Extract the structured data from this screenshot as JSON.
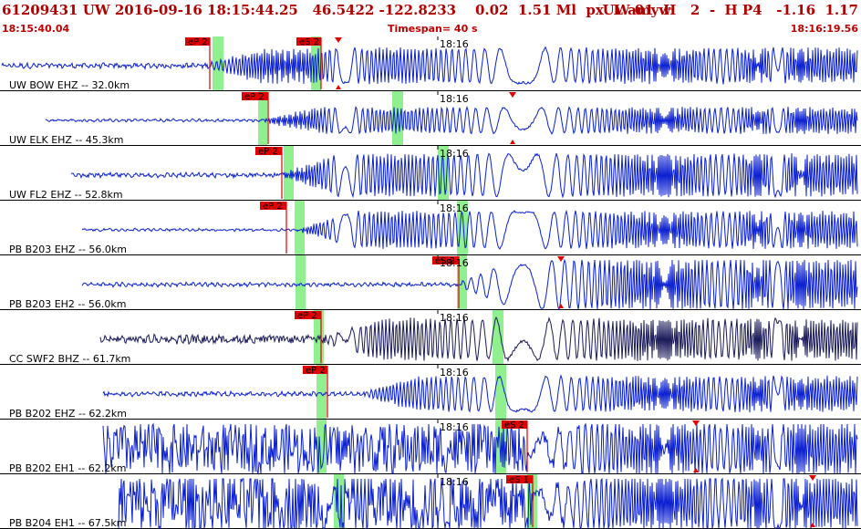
{
  "header": {
    "title": "61209431 UW 2016-09-16 18:15:44.25   46.5422 -122.8233    0.02  1.51 Ml  px  L amyw",
    "values": "UW 01  H   2  -  H P4   -1.16  1.17",
    "start_time": "18:15:40.04",
    "timespan": "Timespan=  40 s",
    "end_time": "18:16:19.56"
  },
  "colors": {
    "trace": "#0a1fd0",
    "trace_alt": "#1a1a5a",
    "pick": "#e00000",
    "window": "#90f090",
    "header_text": "#b00000"
  },
  "time_marker": "18:16",
  "channels": [
    {
      "label": "UW BOW EHZ -- 32.0km",
      "color": "#0a1fd0",
      "picks": [
        "eP 2",
        "eS 2"
      ]
    },
    {
      "label": "UW ELK EHZ -- 45.3km",
      "color": "#0a1fd0",
      "picks": [
        "eP 2"
      ]
    },
    {
      "label": "UW FL2 EHZ -- 52.8km",
      "color": "#0a1fd0",
      "picks": [
        "eP 2"
      ]
    },
    {
      "label": "PB B203 EHZ -- 56.0km",
      "color": "#0a1fd0",
      "picks": [
        "eP 2"
      ]
    },
    {
      "label": "PB B203 EH2 -- 56.0km",
      "color": "#0a1fd0",
      "picks": [
        "eS 2"
      ]
    },
    {
      "label": "CC SWF2 BHZ -- 61.7km",
      "color": "#1a1a5a",
      "picks": [
        "eP 2"
      ]
    },
    {
      "label": "PB B202 EHZ -- 62.2km",
      "color": "#0a1fd0",
      "picks": [
        "eP 2"
      ]
    },
    {
      "label": "PB B202 EH1 -- 62.2km",
      "color": "#0a1fd0",
      "picks": [
        "eS 2"
      ]
    },
    {
      "label": "PB B204 EH1 -- 67.5km",
      "color": "#0a1fd0",
      "picks": [
        "eS 1"
      ]
    }
  ]
}
